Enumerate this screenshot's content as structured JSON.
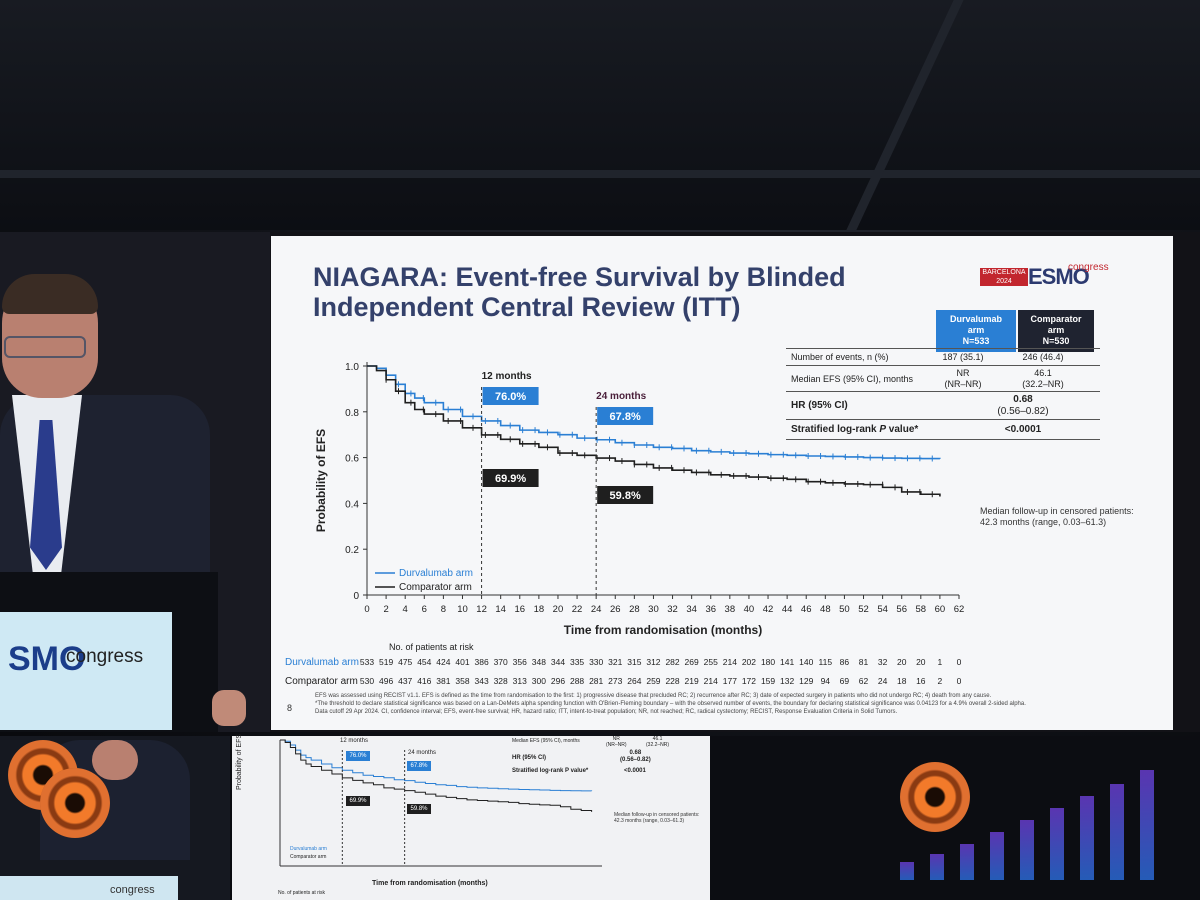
{
  "slide": {
    "title_line1": "NIAGARA: Event-free Survival by Blinded",
    "title_line2": "Independent Central Review (ITT)",
    "logo": {
      "box": "BARCELONA 2024",
      "esmo": "ESMO",
      "congress": "congress"
    },
    "page_number": "8",
    "followup_line1": "Median follow-up in censored patients:",
    "followup_line2": "42.3 months (range, 0.03–61.3)",
    "footnote1": "EFS was assessed using RECIST v1.1. EFS is defined as the time from randomisation to the first: 1) progressive disease that precluded RC; 2) recurrence after RC; 3) date of expected surgery in patients who did not undergo RC; 4) death from any cause.",
    "footnote2": "*The threshold to declare statistical significance was based on a Lan-DeMets alpha spending function with O'Brien-Fleming boundary – with the observed number of events, the boundary for declaring statistical significance was 0.04123 for a 4.9% overall 2-sided alpha.",
    "footnote3": "Data cutoff 29 Apr 2024. CI, confidence interval; EFS, event-free survival; HR, hazard ratio; ITT, intent-to-treat population; NR, not reached; RC, radical cystectomy; RECIST, Response Evaluation Criteria in Solid Tumors."
  },
  "table": {
    "col1_line1": "Durvalumab",
    "col1_line2": "arm",
    "col1_line3": "N=533",
    "col2_line1": "Comparator",
    "col2_line2": "arm",
    "col2_line3": "N=530",
    "rows": [
      {
        "label": "Number of events, n (%)",
        "v1": "187 (35.1)",
        "v2": "246 (46.4)"
      },
      {
        "label": "Median EFS (95% CI), months",
        "v1a": "NR",
        "v1b": "(NR–NR)",
        "v2a": "46.1",
        "v2b": "(32.2–NR)"
      },
      {
        "label": "HR (95% CI)",
        "va": "0.68",
        "vb": "(0.56–0.82)"
      },
      {
        "label_pre": "Stratified log-rank ",
        "label_p": "P",
        "label_post": " value*",
        "v": "<0.0001"
      }
    ]
  },
  "colors": {
    "durvalumab": "#2a7fd4",
    "comparator": "#1f1f1f",
    "title": "#34416b"
  },
  "chart_data": {
    "type": "line",
    "title": "Event-free Survival by Blinded Independent Central Review (ITT)",
    "xlabel": "Time from randomisation (months)",
    "ylabel": "Probability of EFS",
    "xlim": [
      0,
      62
    ],
    "ylim": [
      0,
      1.0
    ],
    "x_ticks": [
      0,
      2,
      4,
      6,
      8,
      10,
      12,
      14,
      16,
      18,
      20,
      22,
      24,
      26,
      28,
      30,
      32,
      34,
      36,
      38,
      40,
      42,
      44,
      46,
      48,
      50,
      52,
      54,
      56,
      58,
      60,
      62
    ],
    "y_ticks": [
      "0",
      "0.2",
      "0.4",
      "0.6",
      "0.8",
      "1.0"
    ],
    "y_tick_values": [
      0,
      0.2,
      0.4,
      0.6,
      0.8,
      1.0
    ],
    "legend": [
      "Durvalumab arm",
      "Comparator arm"
    ],
    "series": [
      {
        "name": "Durvalumab arm",
        "x": [
          0,
          1,
          2,
          3,
          4,
          5,
          6,
          8,
          10,
          12,
          14,
          16,
          18,
          20,
          22,
          24,
          26,
          28,
          30,
          32,
          34,
          36,
          38,
          40,
          42,
          44,
          46,
          48,
          50,
          52,
          54,
          56,
          58,
          60
        ],
        "y": [
          1.0,
          0.99,
          0.96,
          0.92,
          0.88,
          0.86,
          0.84,
          0.81,
          0.78,
          0.76,
          0.74,
          0.72,
          0.71,
          0.7,
          0.685,
          0.678,
          0.665,
          0.655,
          0.645,
          0.64,
          0.63,
          0.625,
          0.62,
          0.617,
          0.613,
          0.61,
          0.607,
          0.605,
          0.603,
          0.6,
          0.598,
          0.597,
          0.596,
          0.595
        ]
      },
      {
        "name": "Comparator arm",
        "x": [
          0,
          1,
          2,
          3,
          4,
          5,
          6,
          8,
          10,
          12,
          14,
          16,
          18,
          20,
          22,
          24,
          26,
          28,
          30,
          32,
          34,
          36,
          38,
          40,
          42,
          44,
          46,
          48,
          50,
          52,
          54,
          56,
          58,
          60
        ],
        "y": [
          1.0,
          0.98,
          0.94,
          0.89,
          0.84,
          0.81,
          0.79,
          0.76,
          0.73,
          0.699,
          0.68,
          0.66,
          0.645,
          0.62,
          0.61,
          0.598,
          0.585,
          0.57,
          0.555,
          0.545,
          0.535,
          0.525,
          0.52,
          0.515,
          0.51,
          0.505,
          0.495,
          0.49,
          0.485,
          0.482,
          0.47,
          0.45,
          0.44,
          0.43
        ]
      }
    ],
    "annotations": {
      "m12_label": "12 months",
      "m24_label": "24 months",
      "m12_month": 12,
      "m24_month": 24,
      "durva_12": "76.0%",
      "durva_24": "67.8%",
      "comp_12": "69.9%",
      "comp_24": "59.8%"
    },
    "at_risk": {
      "title": "No. of patients at risk",
      "durvalumab_label": "Durvalumab arm",
      "comparator_label": "Comparator arm",
      "durvalumab": [
        "533",
        "519",
        "475",
        "454",
        "424",
        "401",
        "386",
        "370",
        "356",
        "348",
        "344",
        "335",
        "330",
        "321",
        "315",
        "312",
        "282",
        "269",
        "255",
        "214",
        "202",
        "180",
        "141",
        "140",
        "115",
        "86",
        "81",
        "32",
        "20",
        "20",
        "1",
        "0"
      ],
      "comparator": [
        "530",
        "496",
        "437",
        "416",
        "381",
        "358",
        "343",
        "328",
        "313",
        "300",
        "296",
        "288",
        "281",
        "273",
        "264",
        "259",
        "228",
        "219",
        "214",
        "177",
        "172",
        "159",
        "132",
        "129",
        "94",
        "69",
        "62",
        "24",
        "18",
        "16",
        "2",
        "0"
      ]
    }
  },
  "monitor": {
    "m12": "12 months",
    "m24": "24 months",
    "d12": "76.0%",
    "d24": "67.8%",
    "c12": "69.9%",
    "c24": "59.8%",
    "ylabel": "Probability of EFS",
    "xlabel": "Time from randomisation (months)",
    "legend1": "Durvalumab arm",
    "legend2": "Comparator arm",
    "at_risk": "No. of patients at risk",
    "row1_label": "Median EFS (95% CI), months",
    "row1_v1": "NR",
    "row1_v1b": "(NR–NR)",
    "row1_v2": "46.1",
    "row1_v2b": "(32.2–NR)",
    "row2_label": "HR (95% CI)",
    "row2_v": "0.68",
    "row2_vb": "(0.56–0.82)",
    "row3_label": "Stratified log-rank P value*",
    "row3_v": "<0.0001",
    "followup1": "Median follow-up in censored patients:",
    "followup2": "42.3 months (range, 0.03–61.3)",
    "sign": "congress"
  },
  "podium_sign": {
    "esmo": "SMO",
    "congress": "congress"
  }
}
